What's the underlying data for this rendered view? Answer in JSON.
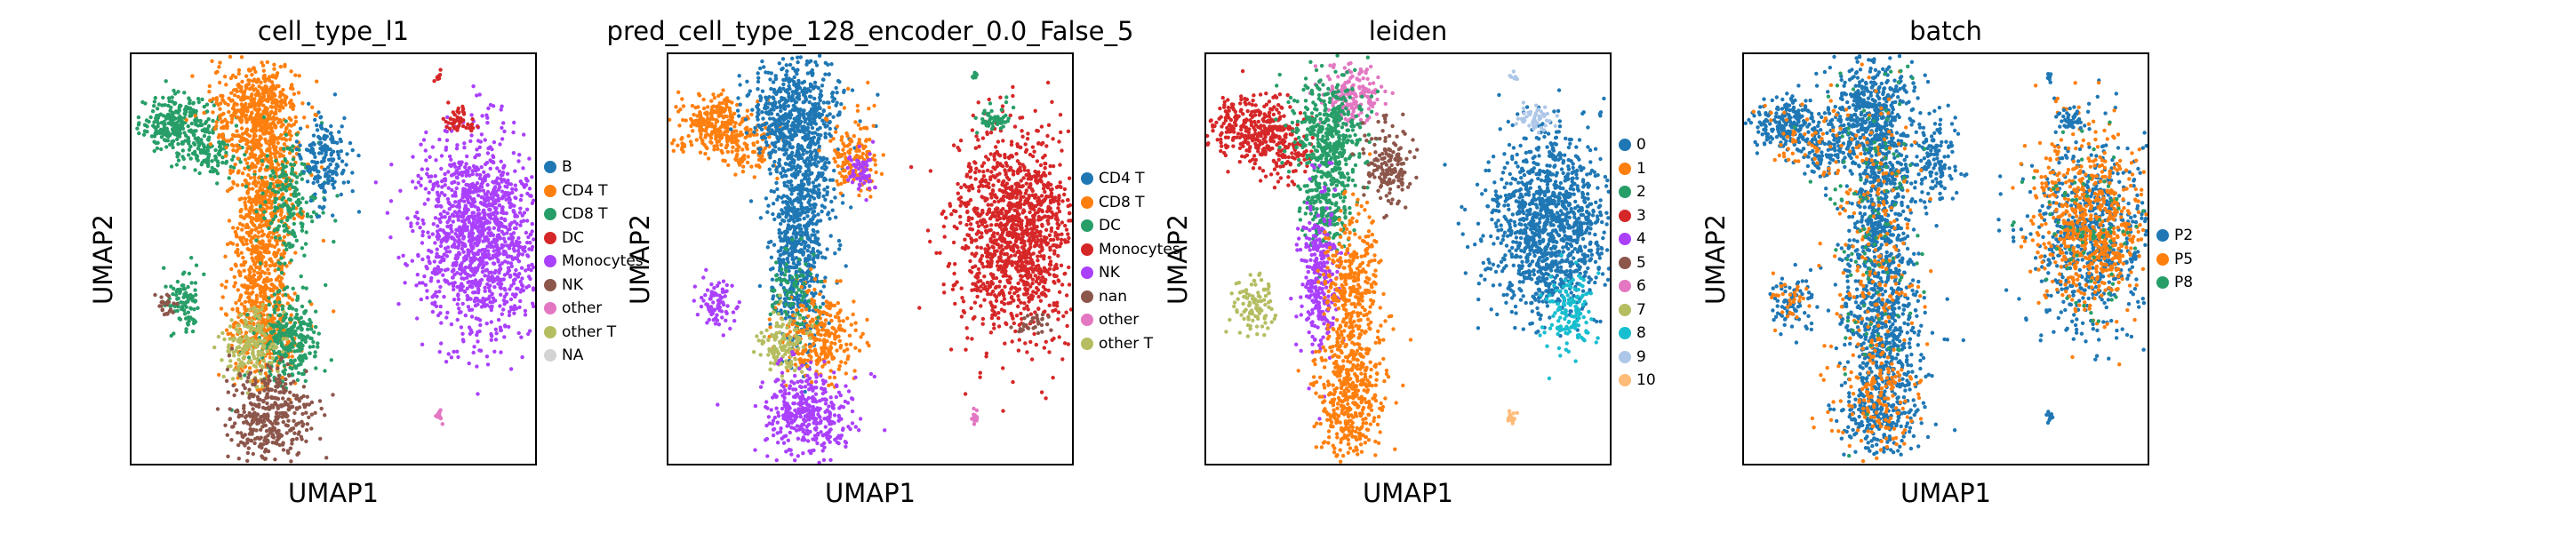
{
  "chart_data": [
    {
      "type": "scatter",
      "title": "cell_type_l1",
      "xlabel": "UMAP1",
      "ylabel": "UMAP2",
      "legend": [
        {
          "label": "B",
          "color": "#1f77b4"
        },
        {
          "label": "CD4 T",
          "color": "#ff7f0e"
        },
        {
          "label": "CD8 T",
          "color": "#279e68"
        },
        {
          "label": "DC",
          "color": "#d62728"
        },
        {
          "label": "Monocytes",
          "color": "#aa40fc"
        },
        {
          "label": "NK",
          "color": "#8c564b"
        },
        {
          "label": "other",
          "color": "#e377c2"
        },
        {
          "label": "other T",
          "color": "#b5bd61"
        },
        {
          "label": "NA",
          "color": "#d3d3d3"
        }
      ],
      "clusters": [
        {
          "color": "#279e68",
          "x": 1.1,
          "y": 8.3,
          "sx": 0.45,
          "sy": 0.35,
          "n": 260
        },
        {
          "color": "#279e68",
          "x": 2.0,
          "y": 7.7,
          "sx": 0.35,
          "sy": 0.35,
          "n": 120
        },
        {
          "color": "#ff7f0e",
          "x": 3.1,
          "y": 8.6,
          "sx": 0.55,
          "sy": 0.65,
          "n": 520
        },
        {
          "color": "#ff7f0e",
          "x": 3.4,
          "y": 7.0,
          "sx": 0.4,
          "sy": 0.9,
          "n": 300
        },
        {
          "color": "#ff7f0e",
          "x": 3.2,
          "y": 5.0,
          "sx": 0.35,
          "sy": 1.2,
          "n": 500
        },
        {
          "color": "#ff7f0e",
          "x": 3.3,
          "y": 3.3,
          "sx": 0.45,
          "sy": 0.6,
          "n": 250
        },
        {
          "color": "#279e68",
          "x": 3.9,
          "y": 6.5,
          "sx": 0.35,
          "sy": 0.8,
          "n": 200
        },
        {
          "color": "#279e68",
          "x": 3.9,
          "y": 3.0,
          "sx": 0.45,
          "sy": 0.55,
          "n": 280
        },
        {
          "color": "#b5bd61",
          "x": 2.9,
          "y": 2.9,
          "sx": 0.35,
          "sy": 0.45,
          "n": 180
        },
        {
          "color": "#8c564b",
          "x": 3.4,
          "y": 1.2,
          "sx": 0.55,
          "sy": 0.55,
          "n": 380
        },
        {
          "color": "#1f77b4",
          "x": 4.8,
          "y": 7.4,
          "sx": 0.3,
          "sy": 0.55,
          "n": 180
        },
        {
          "color": "#279e68",
          "x": 1.3,
          "y": 4.0,
          "sx": 0.25,
          "sy": 0.4,
          "n": 90
        },
        {
          "color": "#8c564b",
          "x": 0.85,
          "y": 3.85,
          "sx": 0.12,
          "sy": 0.15,
          "n": 25
        },
        {
          "color": "#aa40fc",
          "x": 8.6,
          "y": 5.6,
          "sx": 0.75,
          "sy": 1.2,
          "n": 1300
        },
        {
          "color": "#d62728",
          "x": 8.1,
          "y": 8.4,
          "sx": 0.18,
          "sy": 0.15,
          "n": 50
        },
        {
          "color": "#d62728",
          "x": 7.6,
          "y": 9.45,
          "sx": 0.05,
          "sy": 0.05,
          "n": 8
        },
        {
          "color": "#e377c2",
          "x": 7.6,
          "y": 1.15,
          "sx": 0.07,
          "sy": 0.09,
          "n": 14
        }
      ]
    },
    {
      "type": "scatter",
      "title": "pred_cell_type_128_encoder_0.0_False_5",
      "xlabel": "UMAP1",
      "ylabel": "UMAP2",
      "legend": [
        {
          "label": "CD4 T",
          "color": "#1f77b4"
        },
        {
          "label": "CD8 T",
          "color": "#ff7f0e"
        },
        {
          "label": "DC",
          "color": "#279e68"
        },
        {
          "label": "Monocytes",
          "color": "#d62728"
        },
        {
          "label": "NK",
          "color": "#aa40fc"
        },
        {
          "label": "nan",
          "color": "#8c564b"
        },
        {
          "label": "other",
          "color": "#e377c2"
        },
        {
          "label": "other T",
          "color": "#b5bd61"
        }
      ],
      "clusters": [
        {
          "color": "#ff7f0e",
          "x": 1.1,
          "y": 8.3,
          "sx": 0.45,
          "sy": 0.35,
          "n": 260
        },
        {
          "color": "#ff7f0e",
          "x": 2.0,
          "y": 7.7,
          "sx": 0.35,
          "sy": 0.35,
          "n": 100
        },
        {
          "color": "#1f77b4",
          "x": 3.1,
          "y": 8.6,
          "sx": 0.55,
          "sy": 0.65,
          "n": 520
        },
        {
          "color": "#1f77b4",
          "x": 3.4,
          "y": 7.0,
          "sx": 0.4,
          "sy": 0.9,
          "n": 300
        },
        {
          "color": "#1f77b4",
          "x": 3.2,
          "y": 5.0,
          "sx": 0.35,
          "sy": 1.2,
          "n": 500
        },
        {
          "color": "#ff7f0e",
          "x": 3.7,
          "y": 3.1,
          "sx": 0.45,
          "sy": 0.6,
          "n": 280
        },
        {
          "color": "#279e68",
          "x": 3.1,
          "y": 4.3,
          "sx": 0.3,
          "sy": 0.5,
          "n": 80
        },
        {
          "color": "#b5bd61",
          "x": 2.9,
          "y": 2.9,
          "sx": 0.3,
          "sy": 0.4,
          "n": 120
        },
        {
          "color": "#aa40fc",
          "x": 3.4,
          "y": 1.2,
          "sx": 0.55,
          "sy": 0.55,
          "n": 380
        },
        {
          "color": "#ff7f0e",
          "x": 4.6,
          "y": 7.6,
          "sx": 0.3,
          "sy": 0.5,
          "n": 150
        },
        {
          "color": "#aa40fc",
          "x": 4.8,
          "y": 7.1,
          "sx": 0.18,
          "sy": 0.3,
          "n": 60
        },
        {
          "color": "#aa40fc",
          "x": 1.2,
          "y": 3.9,
          "sx": 0.25,
          "sy": 0.3,
          "n": 80
        },
        {
          "color": "#d62728",
          "x": 8.6,
          "y": 5.6,
          "sx": 0.75,
          "sy": 1.2,
          "n": 1300
        },
        {
          "color": "#8c564b",
          "x": 9.1,
          "y": 3.4,
          "sx": 0.25,
          "sy": 0.15,
          "n": 30
        },
        {
          "color": "#279e68",
          "x": 8.1,
          "y": 8.4,
          "sx": 0.18,
          "sy": 0.15,
          "n": 50
        },
        {
          "color": "#279e68",
          "x": 7.6,
          "y": 9.45,
          "sx": 0.05,
          "sy": 0.05,
          "n": 8
        },
        {
          "color": "#e377c2",
          "x": 7.6,
          "y": 1.15,
          "sx": 0.07,
          "sy": 0.09,
          "n": 14
        }
      ]
    },
    {
      "type": "scatter",
      "title": "leiden",
      "xlabel": "UMAP1",
      "ylabel": "UMAP2",
      "legend": [
        {
          "label": "0",
          "color": "#1f77b4"
        },
        {
          "label": "1",
          "color": "#ff7f0e"
        },
        {
          "label": "2",
          "color": "#279e68"
        },
        {
          "label": "3",
          "color": "#d62728"
        },
        {
          "label": "4",
          "color": "#aa40fc"
        },
        {
          "label": "5",
          "color": "#8c564b"
        },
        {
          "label": "6",
          "color": "#e377c2"
        },
        {
          "label": "7",
          "color": "#b5bd61"
        },
        {
          "label": "8",
          "color": "#17becf"
        },
        {
          "label": "9",
          "color": "#aec7e8"
        },
        {
          "label": "10",
          "color": "#ffbb78"
        }
      ],
      "clusters": [
        {
          "color": "#d62728",
          "x": 1.2,
          "y": 8.2,
          "sx": 0.55,
          "sy": 0.4,
          "n": 320
        },
        {
          "color": "#d62728",
          "x": 2.0,
          "y": 7.6,
          "sx": 0.35,
          "sy": 0.35,
          "n": 100
        },
        {
          "color": "#e377c2",
          "x": 3.6,
          "y": 9.0,
          "sx": 0.35,
          "sy": 0.35,
          "n": 180
        },
        {
          "color": "#279e68",
          "x": 3.0,
          "y": 8.0,
          "sx": 0.45,
          "sy": 0.7,
          "n": 420
        },
        {
          "color": "#279e68",
          "x": 3.0,
          "y": 6.3,
          "sx": 0.3,
          "sy": 0.6,
          "n": 200
        },
        {
          "color": "#8c564b",
          "x": 4.5,
          "y": 7.3,
          "sx": 0.28,
          "sy": 0.5,
          "n": 160
        },
        {
          "color": "#aa40fc",
          "x": 2.8,
          "y": 4.5,
          "sx": 0.25,
          "sy": 1.0,
          "n": 300
        },
        {
          "color": "#ff7f0e",
          "x": 3.6,
          "y": 4.1,
          "sx": 0.35,
          "sy": 1.1,
          "n": 400
        },
        {
          "color": "#ff7f0e",
          "x": 3.5,
          "y": 1.6,
          "sx": 0.45,
          "sy": 0.75,
          "n": 380
        },
        {
          "color": "#b5bd61",
          "x": 1.2,
          "y": 3.9,
          "sx": 0.28,
          "sy": 0.35,
          "n": 100
        },
        {
          "color": "#1f77b4",
          "x": 8.5,
          "y": 5.8,
          "sx": 0.75,
          "sy": 1.1,
          "n": 1200
        },
        {
          "color": "#17becf",
          "x": 9.0,
          "y": 3.7,
          "sx": 0.3,
          "sy": 0.45,
          "n": 140
        },
        {
          "color": "#aec7e8",
          "x": 8.1,
          "y": 8.4,
          "sx": 0.2,
          "sy": 0.15,
          "n": 50
        },
        {
          "color": "#aec7e8",
          "x": 7.6,
          "y": 9.45,
          "sx": 0.05,
          "sy": 0.05,
          "n": 8
        },
        {
          "color": "#ffbb78",
          "x": 7.6,
          "y": 1.15,
          "sx": 0.07,
          "sy": 0.09,
          "n": 14
        }
      ]
    },
    {
      "type": "scatter",
      "title": "batch",
      "xlabel": "UMAP1",
      "ylabel": "UMAP2",
      "legend": [
        {
          "label": "P2",
          "color": "#1f77b4"
        },
        {
          "label": "P5",
          "color": "#ff7f0e"
        },
        {
          "label": "P8",
          "color": "#279e68"
        }
      ],
      "clusters": [
        {
          "color": "#1f77b4",
          "x": 1.1,
          "y": 8.3,
          "sx": 0.45,
          "sy": 0.35,
          "n": 220
        },
        {
          "color": "#1f77b4",
          "x": 2.0,
          "y": 7.7,
          "sx": 0.35,
          "sy": 0.35,
          "n": 100
        },
        {
          "color": "#1f77b4",
          "x": 3.1,
          "y": 8.6,
          "sx": 0.55,
          "sy": 0.65,
          "n": 440
        },
        {
          "color": "#1f77b4",
          "x": 3.4,
          "y": 7.0,
          "sx": 0.4,
          "sy": 0.9,
          "n": 260
        },
        {
          "color": "#1f77b4",
          "x": 3.3,
          "y": 5.0,
          "sx": 0.45,
          "sy": 1.2,
          "n": 440
        },
        {
          "color": "#1f77b4",
          "x": 3.5,
          "y": 3.0,
          "sx": 0.5,
          "sy": 0.7,
          "n": 320
        },
        {
          "color": "#1f77b4",
          "x": 3.4,
          "y": 1.2,
          "sx": 0.5,
          "sy": 0.5,
          "n": 260
        },
        {
          "color": "#1f77b4",
          "x": 4.8,
          "y": 7.4,
          "sx": 0.3,
          "sy": 0.55,
          "n": 140
        },
        {
          "color": "#1f77b4",
          "x": 1.2,
          "y": 3.9,
          "sx": 0.25,
          "sy": 0.35,
          "n": 80
        },
        {
          "color": "#1f77b4",
          "x": 8.6,
          "y": 5.6,
          "sx": 0.75,
          "sy": 1.2,
          "n": 650
        },
        {
          "color": "#ff7f0e",
          "x": 8.6,
          "y": 5.8,
          "sx": 0.7,
          "sy": 1.1,
          "n": 650
        },
        {
          "color": "#ff7f0e",
          "x": 3.3,
          "y": 5.0,
          "sx": 0.5,
          "sy": 2.2,
          "n": 260
        },
        {
          "color": "#ff7f0e",
          "x": 3.4,
          "y": 1.6,
          "sx": 0.5,
          "sy": 0.6,
          "n": 120
        },
        {
          "color": "#ff7f0e",
          "x": 1.5,
          "y": 8.0,
          "sx": 0.6,
          "sy": 0.4,
          "n": 60
        },
        {
          "color": "#ff7f0e",
          "x": 1.2,
          "y": 3.9,
          "sx": 0.25,
          "sy": 0.35,
          "n": 30
        },
        {
          "color": "#279e68",
          "x": 3.2,
          "y": 6.0,
          "sx": 0.6,
          "sy": 2.5,
          "n": 120
        },
        {
          "color": "#279e68",
          "x": 8.6,
          "y": 5.6,
          "sx": 0.7,
          "sy": 1.1,
          "n": 80
        },
        {
          "color": "#1f77b4",
          "x": 8.1,
          "y": 8.4,
          "sx": 0.18,
          "sy": 0.15,
          "n": 45
        },
        {
          "color": "#1f77b4",
          "x": 7.6,
          "y": 9.45,
          "sx": 0.05,
          "sy": 0.05,
          "n": 8
        },
        {
          "color": "#1f77b4",
          "x": 7.6,
          "y": 1.15,
          "sx": 0.07,
          "sy": 0.09,
          "n": 14
        }
      ],
      "xlim": [
        0,
        10
      ],
      "ylim": [
        0,
        10
      ]
    }
  ]
}
